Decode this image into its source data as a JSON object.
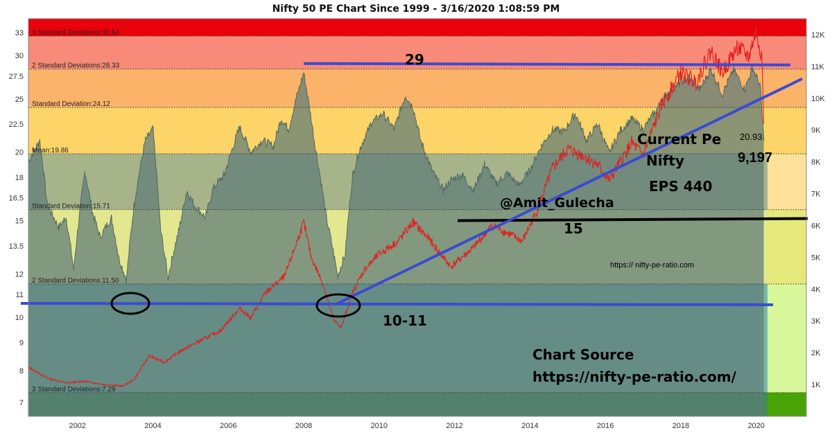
{
  "chart_data": {
    "type": "line",
    "title": "Nifty 50 PE Chart Since 1999 - 3/16/2020 1:08:59 PM",
    "x_ticks": [
      "2002",
      "2004",
      "2006",
      "2008",
      "2010",
      "2012",
      "2014",
      "2016",
      "2018",
      "2020"
    ],
    "y_left_ticks": [
      "7",
      "8",
      "9",
      "10",
      "11",
      "12",
      "13.5",
      "15",
      "16.5",
      "18",
      "20",
      "22.5",
      "25",
      "27.5",
      "30",
      "33"
    ],
    "y_right_ticks": [
      "1K",
      "2K",
      "3K",
      "4K",
      "5K",
      "6K",
      "7K",
      "8K",
      "9K",
      "10K",
      "11K",
      "12K"
    ],
    "xlim": [
      2000.7,
      2021.4
    ],
    "y_left_range": [
      6.6,
      35
    ],
    "y_right_range": [
      0,
      12500
    ],
    "band_labels": [
      {
        "label": "3 Standard Deviations:32.54",
        "value": 32.54
      },
      {
        "label": "2 Standard Deviations:28.33",
        "value": 28.33
      },
      {
        "label": "Standard Deviation:24.12",
        "value": 24.12
      },
      {
        "label": "Mean:19.86",
        "value": 19.86
      },
      {
        "label": "Standard Deviation:15.71",
        "value": 15.71
      },
      {
        "label": "2 Standard Deviations:11.50",
        "value": 11.5
      },
      {
        "label": "3 Standard Deviations:7.29",
        "value": 7.29
      }
    ],
    "band_colors": [
      "#e8000b",
      "#f78a78",
      "#fbb36a",
      "#fdd467",
      "#a7b48a",
      "#e3e78f",
      "#78b7a7",
      "#3b8d55"
    ],
    "side_band_colors": [
      "#e8000b",
      "#f78a78",
      "#fbb36a",
      "#fdd467",
      "#fde19a",
      "#e5e87a",
      "#d8f79b",
      "#4aa306"
    ],
    "series": [
      {
        "name": "Nifty PE",
        "color": "#5e7c78",
        "x": [
          2000.7,
          2001.0,
          2001.2,
          2001.5,
          2001.7,
          2001.9,
          2002.2,
          2002.4,
          2002.6,
          2002.9,
          2003.1,
          2003.3,
          2003.5,
          2003.8,
          2004.0,
          2004.2,
          2004.4,
          2004.7,
          2004.9,
          2005.1,
          2005.4,
          2005.6,
          2005.9,
          2006.1,
          2006.3,
          2006.6,
          2006.9,
          2007.2,
          2007.4,
          2007.6,
          2007.8,
          2008.0,
          2008.3,
          2008.6,
          2008.9,
          2009.1,
          2009.3,
          2009.5,
          2009.8,
          2010.1,
          2010.4,
          2010.7,
          2010.9,
          2011.1,
          2011.4,
          2011.7,
          2011.9,
          2012.2,
          2012.5,
          2012.8,
          2013.1,
          2013.4,
          2013.7,
          2014.0,
          2014.3,
          2014.6,
          2014.9,
          2015.2,
          2015.5,
          2015.8,
          2016.1,
          2016.4,
          2016.7,
          2017.0,
          2017.3,
          2017.6,
          2017.9,
          2018.2,
          2018.5,
          2018.8,
          2019.1,
          2019.4,
          2019.7,
          2019.9,
          2020.1,
          2020.2
        ],
        "values": [
          19.2,
          21.0,
          16.0,
          14.6,
          15.2,
          12.2,
          18.4,
          15.5,
          14.0,
          15.2,
          12.8,
          11.7,
          16.0,
          21.0,
          22.0,
          14.5,
          11.8,
          14.5,
          17.0,
          16.0,
          15.2,
          17.2,
          18.2,
          20.2,
          22.2,
          20.0,
          21.0,
          20.5,
          23.0,
          22.0,
          25.0,
          27.9,
          20.5,
          15.2,
          11.9,
          13.0,
          18.2,
          20.4,
          22.6,
          23.5,
          22.0,
          25.4,
          24.1,
          21.0,
          18.5,
          17.0,
          17.8,
          18.2,
          17.0,
          19.0,
          17.5,
          18.3,
          17.4,
          18.5,
          20.5,
          22.0,
          21.8,
          23.5,
          21.0,
          22.5,
          19.9,
          21.9,
          23.0,
          22.0,
          23.6,
          25.4,
          26.5,
          27.4,
          26.0,
          28.3,
          25.5,
          28.2,
          26.0,
          28.5,
          26.5,
          20.93
        ]
      },
      {
        "name": "Nifty",
        "color": "#e02020",
        "x": [
          2000.7,
          2001.2,
          2001.7,
          2002.2,
          2002.7,
          2003.2,
          2003.5,
          2003.9,
          2004.3,
          2004.8,
          2005.3,
          2005.8,
          2006.3,
          2006.6,
          2007.0,
          2007.5,
          2008.0,
          2008.2,
          2008.5,
          2008.8,
          2009.0,
          2009.3,
          2009.6,
          2010.0,
          2010.5,
          2010.9,
          2011.3,
          2011.9,
          2012.5,
          2013.0,
          2013.5,
          2013.8,
          2014.2,
          2014.6,
          2015.0,
          2015.4,
          2015.8,
          2016.1,
          2016.7,
          2017.0,
          2017.5,
          2018.0,
          2018.4,
          2018.8,
          2019.1,
          2019.5,
          2019.8,
          2020.0,
          2020.15,
          2020.2
        ],
        "values": [
          1550,
          1200,
          1050,
          1100,
          1000,
          950,
          1150,
          1900,
          1700,
          2100,
          2400,
          2700,
          3400,
          3100,
          3900,
          4400,
          6100,
          5000,
          4200,
          3000,
          2800,
          3900,
          4600,
          5100,
          5500,
          6100,
          5600,
          4700,
          5300,
          6000,
          5700,
          5500,
          6500,
          7800,
          8400,
          8200,
          7900,
          7400,
          8600,
          8200,
          9800,
          10800,
          10500,
          11500,
          10800,
          11600,
          11300,
          12100,
          11300,
          9197
        ]
      }
    ],
    "annotations": {
      "level_29": "29",
      "level_15": "15",
      "level_10_11": "10-11",
      "handle": "@Amit_Gulecha",
      "current_pe_label": "Current Pe",
      "current_pe_value": "20.93",
      "nifty_label": "Nifty",
      "nifty_value": "9,197",
      "eps": "EPS 440",
      "site": "https:// nifty-pe-ratio.com",
      "source_label": "Chart Source",
      "source_url": "https://nifty-pe-ratio.com/"
    },
    "lines": {
      "top_level": 29,
      "mid_level": 15,
      "low_level": 10.6,
      "trend_start": {
        "x": 2008.9,
        "y": 10.6
      },
      "trend_end": {
        "x": 2021.1,
        "y": 27.2
      }
    },
    "legend": "none",
    "grid": "dotted band lines"
  }
}
